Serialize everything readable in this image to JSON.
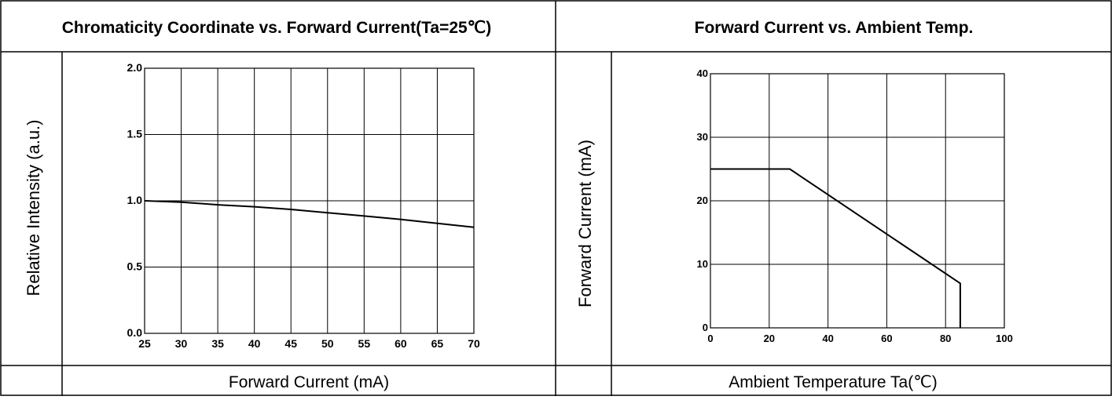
{
  "chart_data": [
    {
      "type": "line",
      "title": "Chromaticity Coordinate vs. Forward Current(Ta=25℃)",
      "xlabel": "Forward Current (mA)",
      "ylabel": "Relative Intensity (a.u.)",
      "xlim": [
        25,
        70
      ],
      "ylim": [
        0.0,
        2.0
      ],
      "xticks": [
        25,
        30,
        35,
        40,
        45,
        50,
        55,
        60,
        65,
        70
      ],
      "yticks": [
        0.0,
        0.5,
        1.0,
        1.5,
        2.0
      ],
      "xtick_labels": [
        "25",
        "30",
        "35",
        "40",
        "45",
        "50",
        "55",
        "60",
        "65",
        "70"
      ],
      "ytick_labels": [
        "0.0",
        "0.5",
        "1.0",
        "1.5",
        "2.0"
      ],
      "grid": true,
      "series": [
        {
          "x": [
            25,
            30,
            35,
            40,
            45,
            50,
            55,
            60,
            65,
            70
          ],
          "y": [
            1.0,
            0.99,
            0.97,
            0.955,
            0.935,
            0.91,
            0.885,
            0.86,
            0.83,
            0.8
          ]
        }
      ]
    },
    {
      "type": "line",
      "title": "Forward Current vs. Ambient Temp.",
      "xlabel": "Ambient Temperature Ta(℃)",
      "ylabel": "Forward Current (mA)",
      "xlim": [
        0,
        100
      ],
      "ylim": [
        0,
        40
      ],
      "xticks": [
        0,
        20,
        40,
        60,
        80,
        100
      ],
      "yticks": [
        0,
        10,
        20,
        30,
        40
      ],
      "xtick_labels": [
        "0",
        "20",
        "40",
        "60",
        "80",
        "100"
      ],
      "ytick_labels": [
        "0",
        "10",
        "20",
        "30",
        "40"
      ],
      "grid": true,
      "series": [
        {
          "x": [
            0,
            27,
            85,
            85
          ],
          "y": [
            25,
            25,
            7,
            0
          ]
        }
      ]
    }
  ]
}
